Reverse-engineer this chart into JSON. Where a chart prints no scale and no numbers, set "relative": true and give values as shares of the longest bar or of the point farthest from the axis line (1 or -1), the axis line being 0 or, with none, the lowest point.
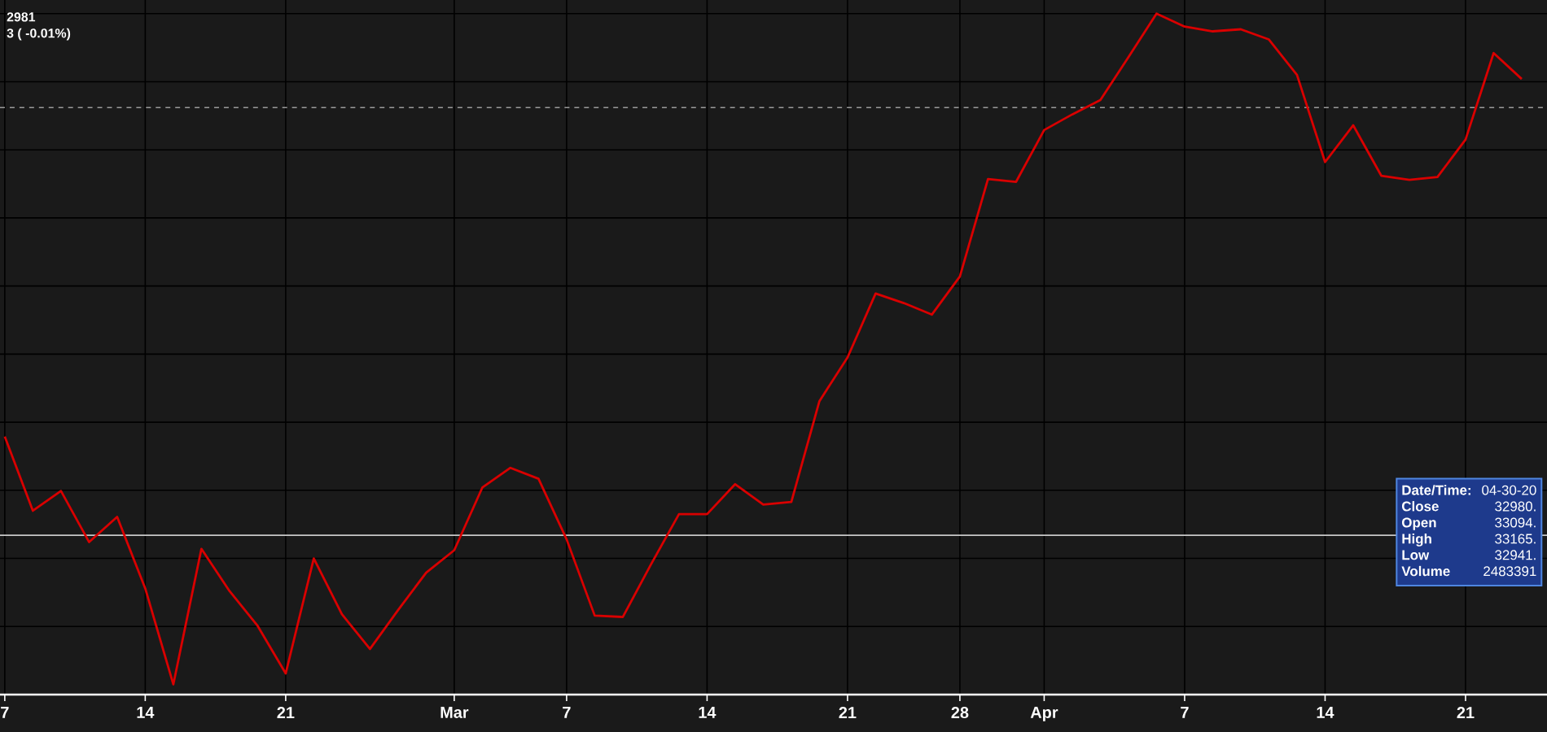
{
  "chart_data": {
    "type": "line",
    "relative": true,
    "grid": true,
    "marker": "none",
    "line_style": "solid",
    "categories": [
      "7",
      null,
      null,
      null,
      null,
      "14",
      null,
      null,
      null,
      null,
      "21",
      null,
      null,
      null,
      null,
      null,
      "Mar",
      null,
      null,
      null,
      "7",
      null,
      null,
      null,
      null,
      "14",
      null,
      null,
      null,
      null,
      "21",
      null,
      null,
      null,
      "28",
      null,
      null,
      "Apr",
      null,
      null,
      null,
      null,
      "7",
      null,
      null,
      null,
      null,
      "14",
      null,
      null,
      null,
      null,
      "21",
      null,
      null
    ],
    "series": [
      {
        "color": "#d90000",
        "values": [
          0.379,
          0.27,
          0.299,
          0.224,
          0.261,
          0.156,
          0.015,
          0.214,
          0.152,
          0.101,
          0.031,
          0.2,
          0.118,
          0.067,
          0.124,
          0.179,
          0.212,
          0.304,
          0.333,
          0.317,
          0.228,
          0.116,
          0.114,
          0.191,
          0.265,
          0.265,
          0.309,
          0.279,
          0.283,
          0.431,
          0.495,
          0.589,
          0.575,
          0.558,
          0.614,
          0.757,
          0.753,
          0.829,
          0.852,
          0.873,
          0.936,
          1,
          0.981,
          0.974,
          0.977,
          0.962,
          0.91,
          0.782,
          0.836,
          0.762,
          0.756,
          0.76,
          0.815,
          0.942,
          0.904
        ]
      }
    ],
    "ref_lines": [
      {
        "axis": "y",
        "value": 0.862,
        "line_style": "dashed",
        "color": "#9a9a9a"
      },
      {
        "axis": "y",
        "value": 0.234,
        "line_style": "solid",
        "color": "#c8c8c8"
      }
    ],
    "annotations": [
      "2981",
      "3 ( -0.01%)",
      "Date/Time:",
      "04-30-20",
      "Close",
      "32980.",
      "Open",
      "33094.",
      "High",
      "33165.",
      "Low",
      "32941.",
      "Volume",
      "2483391"
    ]
  }
}
